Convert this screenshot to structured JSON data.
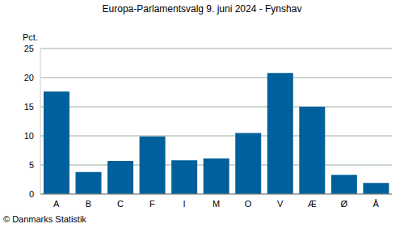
{
  "chart_data": {
    "type": "bar",
    "title": "Europa-Parlamentsvalg 9. juni 2024 - Fynshav",
    "y_label": "Pct.",
    "source": "© Danmarks Statistik",
    "categories": [
      "A",
      "B",
      "C",
      "F",
      "I",
      "M",
      "O",
      "V",
      "Æ",
      "Ø",
      "Å"
    ],
    "values": [
      17.6,
      3.8,
      5.7,
      9.9,
      5.8,
      6.1,
      10.5,
      20.8,
      15.0,
      3.3,
      1.9
    ],
    "color": "#00609c",
    "ylim": [
      0,
      25
    ],
    "yticks": [
      0,
      5,
      10,
      15,
      20,
      25
    ],
    "grid": true
  }
}
